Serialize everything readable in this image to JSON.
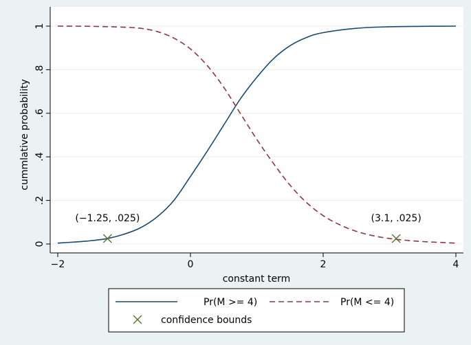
{
  "chart_data": {
    "type": "line",
    "xlabel": "constant term",
    "ylabel": "cummlative probability",
    "xlim": [
      -2,
      4
    ],
    "ylim": [
      0,
      1
    ],
    "x_ticks": [
      {
        "value": -2,
        "label": "−2"
      },
      {
        "value": 0,
        "label": "0"
      },
      {
        "value": 2,
        "label": "2"
      },
      {
        "value": 4,
        "label": "4"
      }
    ],
    "y_ticks": [
      {
        "value": 0,
        "label": "0"
      },
      {
        "value": 0.2,
        "label": ".2"
      },
      {
        "value": 0.4,
        "label": ".4"
      },
      {
        "value": 0.6,
        "label": ".6"
      },
      {
        "value": 0.8,
        "label": ".8"
      },
      {
        "value": 1,
        "label": "1"
      }
    ],
    "grid": true,
    "legend_position": "bottom",
    "series": [
      {
        "name": "Pr(M >= 4)",
        "color": "#1a476f",
        "style": "solid",
        "x": [
          -2,
          -1.75,
          -1.5,
          -1.25,
          -1,
          -0.75,
          -0.5,
          -0.25,
          0,
          0.25,
          0.5,
          0.75,
          1,
          1.25,
          1.5,
          1.75,
          2,
          2.5,
          3,
          3.5,
          4
        ],
        "y": [
          0.004,
          0.009,
          0.015,
          0.025,
          0.045,
          0.075,
          0.125,
          0.2,
          0.31,
          0.425,
          0.545,
          0.665,
          0.765,
          0.85,
          0.91,
          0.948,
          0.97,
          0.99,
          0.997,
          0.999,
          1.0
        ]
      },
      {
        "name": "Pr(M <= 4)",
        "color": "#90353b",
        "style": "dashed",
        "x": [
          -2,
          -1.5,
          -1,
          -0.75,
          -0.5,
          -0.25,
          0,
          0.25,
          0.5,
          0.75,
          1,
          1.25,
          1.5,
          1.75,
          2,
          2.25,
          2.5,
          2.75,
          3,
          3.25,
          3.5,
          4
        ],
        "y": [
          1.0,
          0.999,
          0.995,
          0.99,
          0.975,
          0.945,
          0.895,
          0.82,
          0.72,
          0.6,
          0.48,
          0.37,
          0.27,
          0.19,
          0.13,
          0.088,
          0.058,
          0.038,
          0.025,
          0.017,
          0.011,
          0.004
        ]
      },
      {
        "name": "confidence bounds",
        "color": "#55752f",
        "marker": "x",
        "x": [
          -1.25,
          3.1
        ],
        "y": [
          0.025,
          0.025
        ]
      }
    ],
    "annotations": [
      {
        "text": "(−1.25, .025)",
        "x": -1.25,
        "y": 0.025
      },
      {
        "text": "(3.1, .025)",
        "x": 3.1,
        "y": 0.025
      }
    ]
  }
}
